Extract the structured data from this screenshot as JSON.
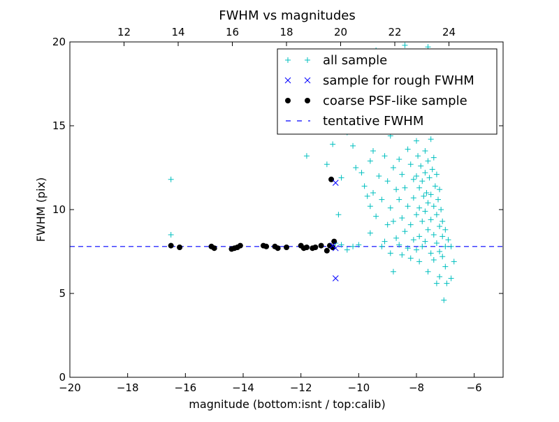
{
  "chart_data": {
    "type": "scatter",
    "title": "FWHM vs magnitudes",
    "xlabel": "magnitude (bottom:isnt / top:calib)",
    "ylabel": "FWHM (pix)",
    "xlim": [
      -20,
      -5
    ],
    "ylim": [
      0,
      20
    ],
    "x_ticks": [
      -20,
      -18,
      -16,
      -14,
      -12,
      -10,
      -8,
      -6
    ],
    "x_tick_labels": [
      "−20",
      "−18",
      "−16",
      "−14",
      "−12",
      "−10",
      "−8",
      "−6"
    ],
    "y_ticks": [
      0,
      5,
      10,
      15,
      20
    ],
    "y_tick_labels": [
      "0",
      "5",
      "10",
      "15",
      "20"
    ],
    "top_axis": {
      "xlim": [
        10,
        26
      ],
      "ticks": [
        12,
        14,
        16,
        18,
        20,
        22,
        24
      ],
      "tick_labels": [
        "12",
        "14",
        "16",
        "18",
        "20",
        "22",
        "24"
      ]
    },
    "grid": false,
    "legend_position": "top-right",
    "series": [
      {
        "name": "all sample",
        "marker": "plus",
        "color": "#00bfbf",
        "points": [
          [
            -16.5,
            11.8
          ],
          [
            -16.5,
            8.5
          ],
          [
            -16.5,
            7.85
          ],
          [
            -11.8,
            13.2
          ],
          [
            -11.1,
            12.7
          ],
          [
            -10.9,
            13.9
          ],
          [
            -10.4,
            14.6
          ],
          [
            -10.2,
            13.8
          ],
          [
            -10.1,
            12.5
          ],
          [
            -10.6,
            11.9
          ],
          [
            -10.7,
            9.7
          ],
          [
            -10.8,
            8.0
          ],
          [
            -10.6,
            7.9
          ],
          [
            -10.4,
            7.6
          ],
          [
            -10.2,
            7.8
          ],
          [
            -10.0,
            7.9
          ],
          [
            -9.9,
            12.2
          ],
          [
            -9.8,
            11.4
          ],
          [
            -9.7,
            10.8
          ],
          [
            -9.6,
            12.9
          ],
          [
            -9.6,
            10.2
          ],
          [
            -9.6,
            8.6
          ],
          [
            -9.5,
            13.5
          ],
          [
            -9.5,
            11.0
          ],
          [
            -9.4,
            9.6
          ],
          [
            -9.3,
            12.0
          ],
          [
            -9.2,
            10.6
          ],
          [
            -9.2,
            7.8
          ],
          [
            -9.1,
            13.2
          ],
          [
            -9.1,
            8.1
          ],
          [
            -9.0,
            11.7
          ],
          [
            -9.0,
            9.1
          ],
          [
            -8.9,
            14.4
          ],
          [
            -8.9,
            10.1
          ],
          [
            -8.9,
            7.4
          ],
          [
            -8.8,
            12.5
          ],
          [
            -8.8,
            9.3
          ],
          [
            -8.8,
            6.3
          ],
          [
            -8.7,
            11.2
          ],
          [
            -8.7,
            8.3
          ],
          [
            -8.6,
            13.0
          ],
          [
            -8.6,
            10.6
          ],
          [
            -8.6,
            7.9
          ],
          [
            -8.5,
            12.1
          ],
          [
            -8.5,
            9.5
          ],
          [
            -8.5,
            7.3
          ],
          [
            -8.4,
            15.2
          ],
          [
            -8.4,
            11.3
          ],
          [
            -8.4,
            8.7
          ],
          [
            -8.3,
            13.6
          ],
          [
            -8.3,
            10.2
          ],
          [
            -8.3,
            7.7
          ],
          [
            -8.2,
            12.7
          ],
          [
            -8.2,
            9.1
          ],
          [
            -8.2,
            7.1
          ],
          [
            -8.1,
            11.8
          ],
          [
            -8.1,
            10.7
          ],
          [
            -8.1,
            8.2
          ],
          [
            -8.0,
            14.1
          ],
          [
            -8.0,
            12.0
          ],
          [
            -8.0,
            9.7
          ],
          [
            -8.0,
            7.6
          ],
          [
            -7.95,
            13.2
          ],
          [
            -7.9,
            11.3
          ],
          [
            -7.9,
            10.1
          ],
          [
            -7.9,
            8.4
          ],
          [
            -7.9,
            6.9
          ],
          [
            -7.85,
            12.6
          ],
          [
            -7.8,
            14.8
          ],
          [
            -7.8,
            11.7
          ],
          [
            -7.8,
            9.3
          ],
          [
            -7.8,
            7.8
          ],
          [
            -7.75,
            10.8
          ],
          [
            -7.7,
            13.5
          ],
          [
            -7.7,
            12.2
          ],
          [
            -7.7,
            9.9
          ],
          [
            -7.7,
            8.1
          ],
          [
            -7.65,
            11.0
          ],
          [
            -7.6,
            15.6
          ],
          [
            -7.6,
            12.9
          ],
          [
            -7.6,
            10.4
          ],
          [
            -7.6,
            8.8
          ],
          [
            -7.6,
            6.3
          ],
          [
            -7.55,
            11.9
          ],
          [
            -7.5,
            14.2
          ],
          [
            -7.5,
            10.9
          ],
          [
            -7.5,
            9.4
          ],
          [
            -7.5,
            7.4
          ],
          [
            -7.45,
            12.4
          ],
          [
            -7.4,
            13.1
          ],
          [
            -7.4,
            10.2
          ],
          [
            -7.4,
            8.5
          ],
          [
            -7.4,
            7.0
          ],
          [
            -7.35,
            11.4
          ],
          [
            -7.3,
            12.1
          ],
          [
            -7.3,
            9.7
          ],
          [
            -7.3,
            8.0
          ],
          [
            -7.3,
            5.6
          ],
          [
            -7.25,
            10.6
          ],
          [
            -7.2,
            11.2
          ],
          [
            -7.2,
            9.0
          ],
          [
            -7.2,
            7.5
          ],
          [
            -7.2,
            6.0
          ],
          [
            -7.15,
            10.0
          ],
          [
            -7.1,
            9.3
          ],
          [
            -7.1,
            8.4
          ],
          [
            -7.1,
            7.2
          ],
          [
            -7.05,
            4.6
          ],
          [
            -7.0,
            8.8
          ],
          [
            -7.0,
            7.8
          ],
          [
            -7.0,
            6.6
          ],
          [
            -6.95,
            5.6
          ],
          [
            -6.9,
            8.2
          ],
          [
            -6.8,
            7.8
          ],
          [
            -6.8,
            5.9
          ],
          [
            -6.7,
            6.9
          ],
          [
            -8.6,
            15.8
          ],
          [
            -8.0,
            16.5
          ],
          [
            -7.7,
            16.8
          ],
          [
            -8.3,
            17.2
          ],
          [
            -7.9,
            17.8
          ],
          [
            -8.5,
            18.4
          ],
          [
            -8.1,
            19.3
          ],
          [
            -8.8,
            18.9
          ],
          [
            -9.0,
            17.6
          ],
          [
            -9.6,
            16.2
          ],
          [
            -10.0,
            15.2
          ],
          [
            -9.4,
            19.5
          ],
          [
            -8.4,
            19.8
          ],
          [
            -7.6,
            19.7
          ]
        ]
      },
      {
        "name": "sample for rough FWHM",
        "marker": "x",
        "color": "#0000ff",
        "points": [
          [
            -10.8,
            11.6
          ],
          [
            -10.8,
            5.9
          ],
          [
            -10.8,
            7.7
          ],
          [
            -10.9,
            7.85
          ]
        ]
      },
      {
        "name": "coarse PSF-like sample",
        "marker": "circle",
        "color": "#000000",
        "points": [
          [
            -16.5,
            7.85
          ],
          [
            -16.2,
            7.75
          ],
          [
            -15.1,
            7.8
          ],
          [
            -15.0,
            7.7
          ],
          [
            -14.4,
            7.65
          ],
          [
            -14.3,
            7.7
          ],
          [
            -14.2,
            7.75
          ],
          [
            -14.1,
            7.85
          ],
          [
            -13.3,
            7.85
          ],
          [
            -13.2,
            7.8
          ],
          [
            -12.9,
            7.8
          ],
          [
            -12.8,
            7.7
          ],
          [
            -12.5,
            7.75
          ],
          [
            -12.0,
            7.85
          ],
          [
            -11.9,
            7.7
          ],
          [
            -11.8,
            7.75
          ],
          [
            -11.6,
            7.7
          ],
          [
            -11.5,
            7.75
          ],
          [
            -11.3,
            7.85
          ],
          [
            -11.1,
            7.55
          ],
          [
            -11.0,
            7.85
          ],
          [
            -10.9,
            7.75
          ],
          [
            -10.85,
            8.1
          ],
          [
            -10.95,
            11.8
          ]
        ]
      },
      {
        "name": "tentative FWHM",
        "marker": "dashed-line",
        "color": "#0000ff",
        "value": 7.8
      }
    ]
  }
}
